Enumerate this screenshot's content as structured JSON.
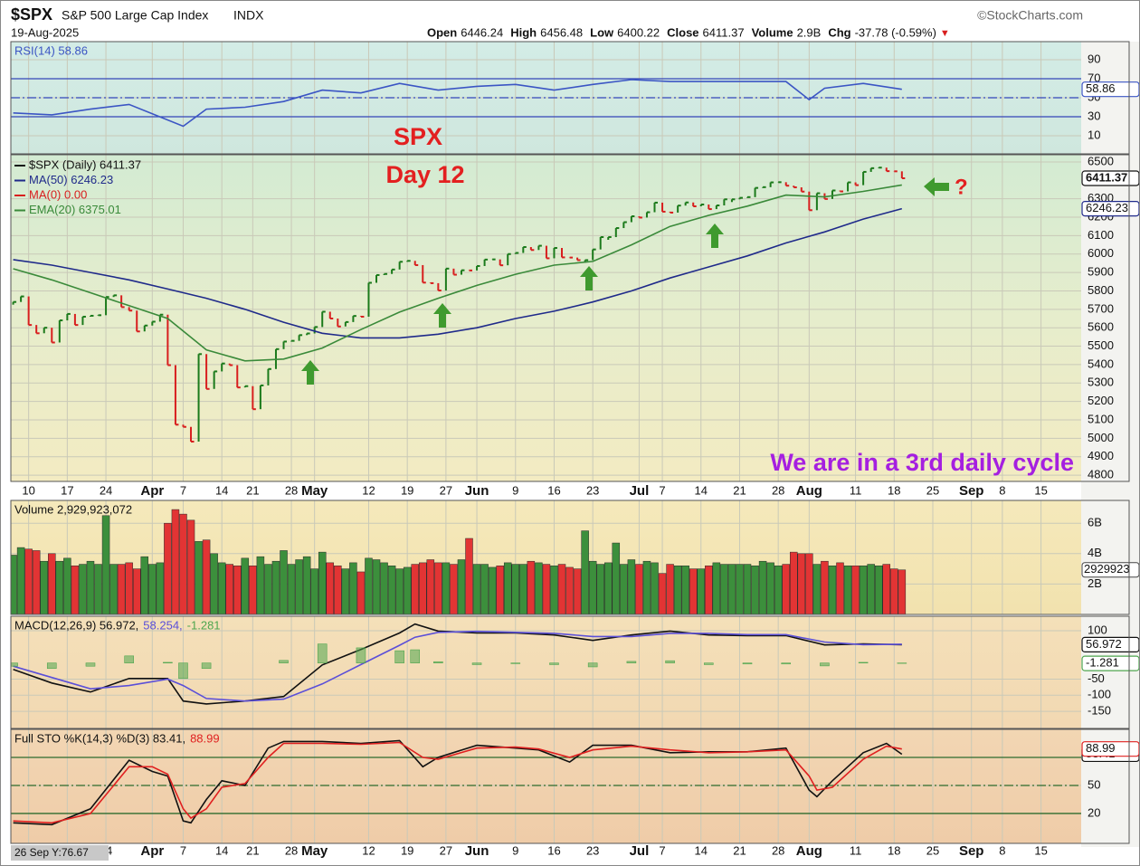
{
  "header": {
    "symbol": "$SPX",
    "name": "S&P 500 Large Cap Index",
    "exchange": "INDX",
    "source": "©StockCharts.com",
    "date": "19-Aug-2025",
    "quote": [
      {
        "label": "Open",
        "value": "6446.24"
      },
      {
        "label": "High",
        "value": "6456.48"
      },
      {
        "label": "Low",
        "value": "6400.22"
      },
      {
        "label": "Close",
        "value": "6411.37"
      },
      {
        "label": "Volume",
        "value": "2.9B"
      },
      {
        "label": "Chg",
        "value": "-37.78 (-0.59%)"
      }
    ],
    "change_arrow": "▼"
  },
  "cursor_readout": "26 Sep Y:76.67",
  "chart_data": [
    {
      "type": "line",
      "ylim": [
        -9,
        109
      ],
      "yticks": [
        10,
        30,
        50,
        70,
        90
      ],
      "ref_lines": [
        70,
        50,
        30
      ],
      "ref_color": "#3446b8",
      "series": [
        {
          "name": "RSI(14) 58.86",
          "color": "#3b55c4",
          "style": "line",
          "tag": true,
          "x": [
            -2,
            3,
            8,
            13,
            20,
            23,
            28,
            33,
            38,
            43,
            48,
            53,
            58,
            63,
            68,
            73,
            78,
            83,
            88,
            93,
            98,
            101,
            103,
            108,
            113
          ],
          "values": [
            34,
            32,
            38,
            43,
            20,
            38,
            40,
            46,
            58,
            55,
            65,
            58,
            62,
            64,
            58,
            64,
            69,
            67,
            67,
            67,
            67,
            48,
            60,
            65,
            58.86
          ]
        }
      ]
    },
    {
      "type": "price",
      "title": "SPX",
      "subtitle": "Day 12",
      "annotations": [
        "?",
        "We are in a 3rd daily cycle"
      ],
      "up_color": "#1b7a1b",
      "down_color": "#d81e1e",
      "xlim": [
        -2.3,
        136.2
      ],
      "xticks": [
        {
          "value": 0,
          "label": "10"
        },
        {
          "value": 5,
          "label": "17"
        },
        {
          "value": 10,
          "label": "24"
        },
        {
          "value": 16,
          "label": "Apr"
        },
        {
          "value": 20,
          "label": "7"
        },
        {
          "value": 25,
          "label": "14"
        },
        {
          "value": 29,
          "label": "21"
        },
        {
          "value": 34,
          "label": "28"
        },
        {
          "value": 37,
          "label": "May"
        },
        {
          "value": 44,
          "label": "12"
        },
        {
          "value": 49,
          "label": "19"
        },
        {
          "value": 54,
          "label": "27"
        },
        {
          "value": 58,
          "label": "Jun"
        },
        {
          "value": 63,
          "label": "9"
        },
        {
          "value": 68,
          "label": "16"
        },
        {
          "value": 73,
          "label": "23"
        },
        {
          "value": 79,
          "label": "Jul"
        },
        {
          "value": 82,
          "label": "7"
        },
        {
          "value": 87,
          "label": "14"
        },
        {
          "value": 92,
          "label": "21"
        },
        {
          "value": 97,
          "label": "28"
        },
        {
          "value": 101,
          "label": "Aug"
        },
        {
          "value": 107,
          "label": "11"
        },
        {
          "value": 112,
          "label": "18"
        },
        {
          "value": 117,
          "label": "25"
        },
        {
          "value": 122,
          "label": "Sep"
        },
        {
          "value": 126,
          "label": "8"
        },
        {
          "value": 131,
          "label": "15"
        }
      ],
      "ylim": [
        4766,
        6539
      ],
      "yticks": [
        4800,
        4900,
        5000,
        5100,
        5200,
        5300,
        5400,
        5500,
        5600,
        5700,
        5800,
        5900,
        6000,
        6100,
        6200,
        6300,
        6500
      ],
      "x": [
        -2,
        -1,
        0,
        1,
        2,
        3,
        4,
        5,
        6,
        7,
        8,
        9,
        10,
        11,
        12,
        13,
        14,
        15,
        16,
        17,
        18,
        19,
        20,
        21,
        22,
        23,
        24,
        25,
        26,
        27,
        28,
        29,
        30,
        31,
        32,
        33,
        34,
        35,
        36,
        37,
        38,
        39,
        40,
        41,
        42,
        43,
        44,
        45,
        46,
        47,
        48,
        49,
        50,
        51,
        52,
        53,
        54,
        55,
        56,
        57,
        58,
        59,
        60,
        61,
        62,
        63,
        64,
        65,
        66,
        67,
        68,
        69,
        70,
        71,
        72,
        73,
        74,
        75,
        76,
        77,
        78,
        79,
        80,
        81,
        82,
        83,
        84,
        85,
        86,
        87,
        88,
        89,
        90,
        91,
        92,
        93,
        94,
        95,
        96,
        97,
        98,
        99,
        100,
        101,
        102,
        103,
        104,
        105,
        106,
        107,
        108,
        109,
        110,
        111,
        112,
        113
      ],
      "series": [
        {
          "name": "$SPX (Daily) 6411.37",
          "color": "#111111",
          "style": "price",
          "tag": true,
          "values": [
            5740,
            5770,
            5615,
            5570,
            5600,
            5520,
            5640,
            5675,
            5615,
            5660,
            5665,
            5668,
            5767,
            5776,
            5712,
            5693,
            5580,
            5612,
            5633,
            5671,
            5397,
            5074,
            5062,
            4982,
            5457,
            5268,
            5363,
            5406,
            5397,
            5276,
            5283,
            5158,
            5287,
            5376,
            5484,
            5525,
            5529,
            5560,
            5569,
            5604,
            5687,
            5650,
            5607,
            5631,
            5664,
            5660,
            5844,
            5886,
            5892,
            5916,
            5958,
            5963,
            5940,
            5845,
            5842,
            5802,
            5921,
            5888,
            5912,
            5911,
            5935,
            5970,
            5971,
            5939,
            6000,
            6006,
            6038,
            6022,
            6045,
            5977,
            6033,
            5982,
            5981,
            5967,
            5967,
            6025,
            6092,
            6092,
            6141,
            6173,
            6205,
            6198,
            6227,
            6279,
            6230,
            6225,
            6263,
            6280,
            6259,
            6269,
            6244,
            6264,
            6297,
            6297,
            6305,
            6309,
            6359,
            6363,
            6389,
            6390,
            6371,
            6362,
            6339,
            6238,
            6330,
            6299,
            6345,
            6340,
            6389,
            6374,
            6446,
            6466,
            6469,
            6450,
            6449,
            6411.37
          ]
        },
        {
          "name": "MA(50) 6246.23",
          "color": "#1f2a8a",
          "style": "line",
          "tag": true,
          "x": [
            -2,
            3,
            8,
            13,
            18,
            23,
            28,
            33,
            38,
            43,
            48,
            53,
            58,
            63,
            68,
            73,
            78,
            83,
            88,
            93,
            98,
            103,
            108,
            113
          ],
          "values": [
            5970,
            5940,
            5900,
            5860,
            5810,
            5760,
            5700,
            5630,
            5570,
            5545,
            5545,
            5565,
            5600,
            5650,
            5690,
            5740,
            5800,
            5870,
            5930,
            5990,
            6060,
            6120,
            6190,
            6246.23
          ]
        },
        {
          "name": "MA(0) 0.00",
          "color": "#d81e1e",
          "style": "line",
          "x": [],
          "values": []
        },
        {
          "name": "EMA(20) 6375.01",
          "color": "#3a8a3a",
          "style": "line",
          "x": [
            -2,
            3,
            8,
            13,
            18,
            23,
            28,
            33,
            38,
            43,
            48,
            53,
            58,
            63,
            68,
            73,
            78,
            83,
            88,
            93,
            98,
            103,
            108,
            113
          ],
          "values": [
            5920,
            5860,
            5790,
            5720,
            5650,
            5480,
            5420,
            5430,
            5490,
            5590,
            5685,
            5760,
            5830,
            5890,
            5940,
            5960,
            6050,
            6150,
            6210,
            6260,
            6320,
            6310,
            6340,
            6375.01
          ]
        }
      ]
    },
    {
      "type": "bar",
      "ylim": [
        0,
        7.5
      ],
      "yticks": [
        {
          "value": 2,
          "label": "2B"
        },
        {
          "value": 4,
          "label": "4B"
        },
        {
          "value": 6,
          "label": "6B"
        }
      ],
      "tag_label": "2929923",
      "series": [
        {
          "name": "Volume 2,929,923,072",
          "color": "#111111",
          "style": "volume",
          "values": [
            3.9,
            4.4,
            4.3,
            4.2,
            3.5,
            4.0,
            3.5,
            3.7,
            3.2,
            3.3,
            3.5,
            3.3,
            6.5,
            3.3,
            3.3,
            3.4,
            3.0,
            3.8,
            3.3,
            3.4,
            6.0,
            6.9,
            6.6,
            6.2,
            4.8,
            4.9,
            4.0,
            3.4,
            3.3,
            3.2,
            3.7,
            3.2,
            3.8,
            3.3,
            3.5,
            4.2,
            3.3,
            3.6,
            3.8,
            3.0,
            4.1,
            3.4,
            3.2,
            3.0,
            3.4,
            2.8,
            3.7,
            3.6,
            3.4,
            3.2,
            3.0,
            3.1,
            3.3,
            3.4,
            3.6,
            3.4,
            3.4,
            3.3,
            3.6,
            5.0,
            3.3,
            3.3,
            3.1,
            3.2,
            3.4,
            3.3,
            3.3,
            3.5,
            3.4,
            3.3,
            3.2,
            3.3,
            3.1,
            3.0,
            5.5,
            3.5,
            3.3,
            3.4,
            4.7,
            3.3,
            3.6,
            3.3,
            3.5,
            3.4,
            2.7,
            3.3,
            3.2,
            3.2,
            3.0,
            3.0,
            3.2,
            3.4,
            3.3,
            3.3,
            3.3,
            3.3,
            3.2,
            3.5,
            3.4,
            3.2,
            3.3,
            4.1,
            4.0,
            4.0,
            3.3,
            3.5,
            3.2,
            3.4,
            3.2,
            3.2,
            3.2,
            3.3,
            3.2,
            3.3,
            3.0,
            2.93
          ]
        }
      ]
    },
    {
      "type": "line",
      "ylim": [
        -203,
        145
      ],
      "yticks": [
        -150,
        -100,
        -50,
        100
      ],
      "series": [
        {
          "name": "MACD(12,26,9) 56.972,",
          "color": "#111111",
          "style": "line",
          "tag": true,
          "x": [
            -2,
            3,
            8,
            13,
            18,
            20,
            23,
            28,
            33,
            38,
            43,
            48,
            50,
            53,
            58,
            63,
            68,
            73,
            78,
            83,
            88,
            93,
            98,
            103,
            108,
            113
          ],
          "values": [
            -20,
            -62,
            -90,
            -48,
            -48,
            -118,
            -127,
            -118,
            -104,
            -6,
            42,
            93,
            121,
            99,
            93,
            93,
            87,
            70,
            87,
            99,
            87,
            85,
            85,
            56,
            59,
            56.972
          ]
        },
        {
          "name": "58.254,",
          "color": "#5b4fd8",
          "style": "line",
          "x": [
            -2,
            3,
            8,
            13,
            18,
            20,
            23,
            28,
            33,
            38,
            43,
            48,
            50,
            53,
            58,
            63,
            68,
            73,
            78,
            83,
            88,
            93,
            98,
            103,
            108,
            113
          ],
          "values": [
            -10,
            -45,
            -80,
            -70,
            -50,
            -70,
            -110,
            -118,
            -112,
            -65,
            -5,
            55,
            80,
            95,
            98,
            95,
            92,
            82,
            82,
            92,
            92,
            88,
            88,
            65,
            57,
            58.254
          ]
        },
        {
          "name": "-1.281",
          "color": "#4fa64f",
          "style": "histogram",
          "tag": true,
          "x": [
            -2,
            3,
            8,
            13,
            18,
            20,
            23,
            28,
            33,
            38,
            43,
            48,
            50,
            53,
            58,
            63,
            68,
            73,
            78,
            83,
            88,
            93,
            98,
            103,
            108,
            113
          ],
          "values": [
            -10,
            -17,
            -10,
            22,
            2,
            -48,
            -17,
            0,
            8,
            59,
            47,
            38,
            41,
            4,
            -5,
            -2,
            -5,
            -12,
            5,
            7,
            -5,
            -3,
            -3,
            -9,
            2,
            -1.281
          ]
        }
      ]
    },
    {
      "type": "line",
      "ylim": [
        -12,
        110
      ],
      "yticks": [
        20,
        50
      ],
      "ref_lines": [
        80,
        50,
        20
      ],
      "ref_color": "#2e6b2e",
      "series": [
        {
          "name": "Full STO %K(14,3) %D(3) 83.41,",
          "color": "#111111",
          "style": "line",
          "tag": true,
          "x": [
            -2,
            3,
            8,
            13,
            16,
            18,
            20,
            21,
            23,
            25,
            28,
            31,
            33,
            38,
            43,
            48,
            51,
            53,
            58,
            63,
            66,
            70,
            73,
            78,
            83,
            88,
            93,
            98,
            101,
            102,
            104,
            108,
            111,
            113
          ],
          "values": [
            10,
            8,
            25,
            77,
            65,
            60,
            12,
            10,
            35,
            55,
            50,
            90,
            97,
            97,
            95,
            98,
            70,
            80,
            93,
            90,
            88,
            75,
            93,
            93,
            85,
            86,
            86,
            90,
            45,
            38,
            55,
            85,
            95,
            83.41
          ]
        },
        {
          "name": "88.99",
          "color": "#e02020",
          "style": "line",
          "tag": true,
          "x": [
            -2,
            3,
            8,
            13,
            16,
            18,
            20,
            21,
            23,
            25,
            28,
            31,
            33,
            38,
            43,
            48,
            51,
            53,
            58,
            63,
            66,
            70,
            73,
            78,
            83,
            88,
            93,
            98,
            101,
            102,
            104,
            108,
            111,
            113
          ],
          "values": [
            12,
            10,
            20,
            70,
            70,
            62,
            25,
            15,
            25,
            48,
            52,
            80,
            95,
            95,
            94,
            96,
            80,
            78,
            90,
            91,
            89,
            80,
            88,
            92,
            88,
            85,
            86,
            88,
            60,
            45,
            48,
            78,
            92,
            88.99
          ]
        }
      ]
    }
  ]
}
